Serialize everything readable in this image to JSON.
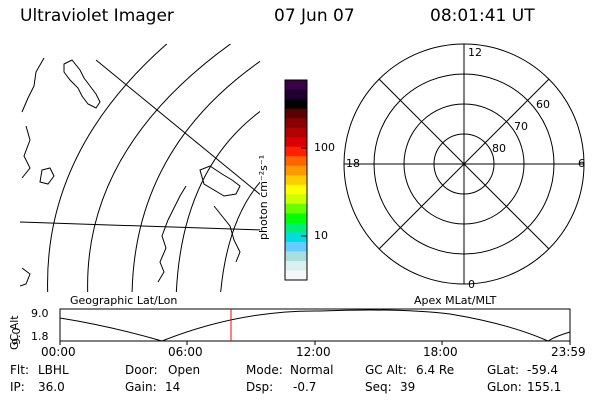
{
  "header": {
    "instrument": "Ultraviolet Imager",
    "date": "07 Jun 07",
    "time": "08:01:41 UT"
  },
  "map_panel": {
    "caption": "Geographic Lat/Lon"
  },
  "colorbar": {
    "unit_label": "photon cm⁻²s⁻¹",
    "ticks": [
      "100",
      "10"
    ],
    "colors": [
      "#3a0048",
      "#1f0033",
      "#000000",
      "#5a0000",
      "#8a0000",
      "#b00000",
      "#d80000",
      "#ff2000",
      "#ff6600",
      "#ff9900",
      "#ffcc00",
      "#ffff00",
      "#ccff00",
      "#66ff00",
      "#00ff00",
      "#00ee77",
      "#00dddd",
      "#66ccff",
      "#aadddd",
      "#ddeeee",
      "#f4f8f8"
    ]
  },
  "polar_panel": {
    "caption": "Apex MLat/MLT",
    "mlt_labels": {
      "top": "12",
      "right": "6",
      "bottom": "0",
      "left": "18"
    },
    "lat_labels": [
      "60",
      "70",
      "80"
    ]
  },
  "altitude_plot": {
    "ylabel": "GC Alt",
    "yticks": [
      "9.0",
      "1.8"
    ],
    "xticks": [
      "00:00",
      "06:00",
      "12:00",
      "18:00",
      "23:59"
    ],
    "current_time_marker": "08:01",
    "marker_color": "#ff0000"
  },
  "status": {
    "filter": {
      "label": "Flt:",
      "value": "LBHL"
    },
    "ip": {
      "label": "IP:",
      "value": "36.0"
    },
    "door": {
      "label": "Door:",
      "value": "Open"
    },
    "gain": {
      "label": "Gain:",
      "value": "14"
    },
    "mode": {
      "label": "Mode:",
      "value": "Normal"
    },
    "dsp": {
      "label": "Dsp:",
      "value": "-0.7"
    },
    "gc_alt": {
      "label": "GC Alt:",
      "value": "6.4 Re"
    },
    "seq": {
      "label": "Seq:",
      "value": "39"
    },
    "glat": {
      "label": "GLat:",
      "value": "-59.4"
    },
    "glon": {
      "label": "GLon:",
      "value": "155.1"
    }
  }
}
